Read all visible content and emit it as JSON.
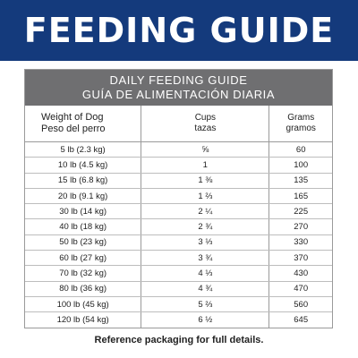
{
  "banner": {
    "title": "FEEDING GUIDE",
    "color": "#143a7c"
  },
  "table": {
    "title_en": "DAILY FEEDING GUIDE",
    "title_es": "GUÍA DE ALIMENTACIÓN DIARIA",
    "header_color": "#6f6f71",
    "columns": {
      "weight_en": "Weight of Dog",
      "weight_es": "Peso del perro",
      "cups_en": "Cups",
      "cups_es": "tazas",
      "grams_en": "Grams",
      "grams_es": "gramos"
    },
    "rows": [
      {
        "weight": "5 lb (2.3 kg)",
        "cups": "⅝",
        "grams": "60"
      },
      {
        "weight": "10 lb (4.5 kg)",
        "cups": "1",
        "grams": "100"
      },
      {
        "weight": "15 lb (6.8 kg)",
        "cups": "1 ⅜",
        "grams": "135"
      },
      {
        "weight": "20 lb (9.1 kg)",
        "cups": "1 ⅔",
        "grams": "165"
      },
      {
        "weight": "30 lb (14 kg)",
        "cups": "2 ¼",
        "grams": "225"
      },
      {
        "weight": "40 lb (18 kg)",
        "cups": "2 ¾",
        "grams": "270"
      },
      {
        "weight": "50 lb (23 kg)",
        "cups": "3 ⅓",
        "grams": "330"
      },
      {
        "weight": "60 lb (27 kg)",
        "cups": "3 ¾",
        "grams": "370"
      },
      {
        "weight": "70 lb (32 kg)",
        "cups": "4 ⅓",
        "grams": "430"
      },
      {
        "weight": "80 lb (36 kg)",
        "cups": "4 ¾",
        "grams": "470"
      },
      {
        "weight": "100 lb (45 kg)",
        "cups": "5 ⅔",
        "grams": "560"
      },
      {
        "weight": "120 lb (54 kg)",
        "cups": "6 ½",
        "grams": "645"
      }
    ]
  },
  "footnote": "Reference packaging for full details."
}
